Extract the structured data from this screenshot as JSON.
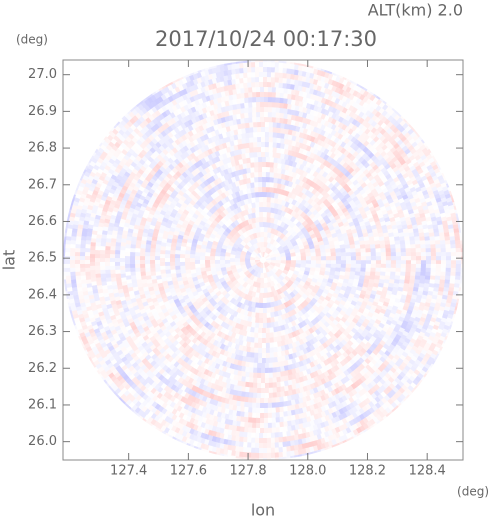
{
  "chart_data": {
    "type": "radar-ppi",
    "title": "2017/10/24 00:17:30",
    "subtitle": "ALT(km) 2.0",
    "y_unit": "(deg)",
    "x_unit": "(deg)",
    "x_label": "lon",
    "y_label": "lat",
    "xlim": [
      127.18,
      128.52
    ],
    "ylim": [
      25.95,
      27.04
    ],
    "xticks": [
      127.4,
      127.6,
      127.8,
      {
        "value": 128.0,
        "label": "128.0"
      },
      128.2,
      128.4
    ],
    "yticks": [
      {
        "value": 26.0,
        "label": "26.0"
      },
      26.1,
      26.2,
      26.3,
      26.4,
      26.5,
      26.6,
      26.7,
      26.8,
      26.9,
      {
        "value": 27.0,
        "label": "27.0"
      }
    ]
  }
}
